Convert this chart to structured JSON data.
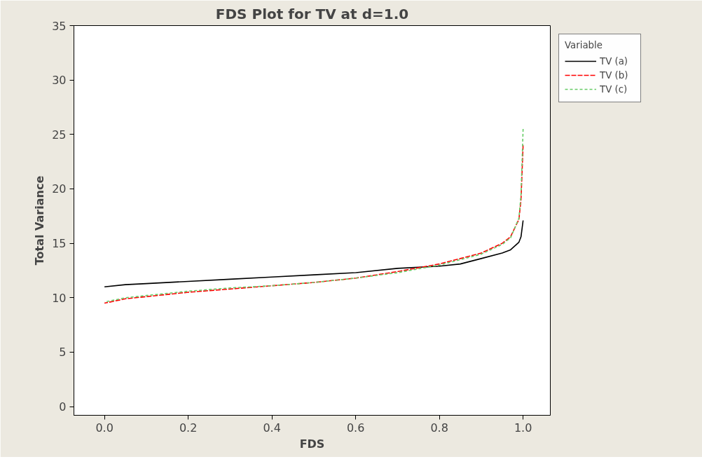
{
  "chart_data": {
    "type": "line",
    "title": "FDS Plot for TV at d=1.0",
    "xlabel": "FDS",
    "ylabel": "Total Variance",
    "legend_title": "Variable",
    "x": [
      0.0,
      0.05,
      0.1,
      0.2,
      0.3,
      0.4,
      0.5,
      0.6,
      0.7,
      0.8,
      0.85,
      0.9,
      0.95,
      0.97,
      0.99,
      0.995,
      1.0
    ],
    "series": [
      {
        "name": "TV (a)",
        "color": "#000000",
        "line_style": "solid",
        "values": [
          11.0,
          11.2,
          11.3,
          11.5,
          11.7,
          11.9,
          12.1,
          12.3,
          12.7,
          12.9,
          13.1,
          13.6,
          14.1,
          14.4,
          15.1,
          15.6,
          17.1
        ]
      },
      {
        "name": "TV (b)",
        "color": "#ff0000",
        "line_style": "dashed",
        "values": [
          9.5,
          9.9,
          10.1,
          10.5,
          10.8,
          11.1,
          11.4,
          11.8,
          12.4,
          13.1,
          13.6,
          14.1,
          15.0,
          15.6,
          17.2,
          19.0,
          24.0
        ]
      },
      {
        "name": "TV (c)",
        "color": "#66cc66",
        "line_style": "dotted",
        "values": [
          9.6,
          10.0,
          10.2,
          10.6,
          10.9,
          11.1,
          11.4,
          11.8,
          12.3,
          13.0,
          13.5,
          14.0,
          14.9,
          15.5,
          17.3,
          19.5,
          25.5
        ]
      }
    ],
    "xlim": [
      -0.073,
      1.065
    ],
    "ylim": [
      -0.8,
      35
    ],
    "xticks": [
      {
        "value": 0,
        "label": "0.0"
      },
      0.2,
      0.4,
      0.6,
      0.8,
      {
        "value": 1,
        "label": "1.0"
      }
    ],
    "yticks": [
      0,
      5,
      10,
      15,
      20,
      25,
      30,
      35
    ],
    "grid": false,
    "legend": "top right"
  }
}
